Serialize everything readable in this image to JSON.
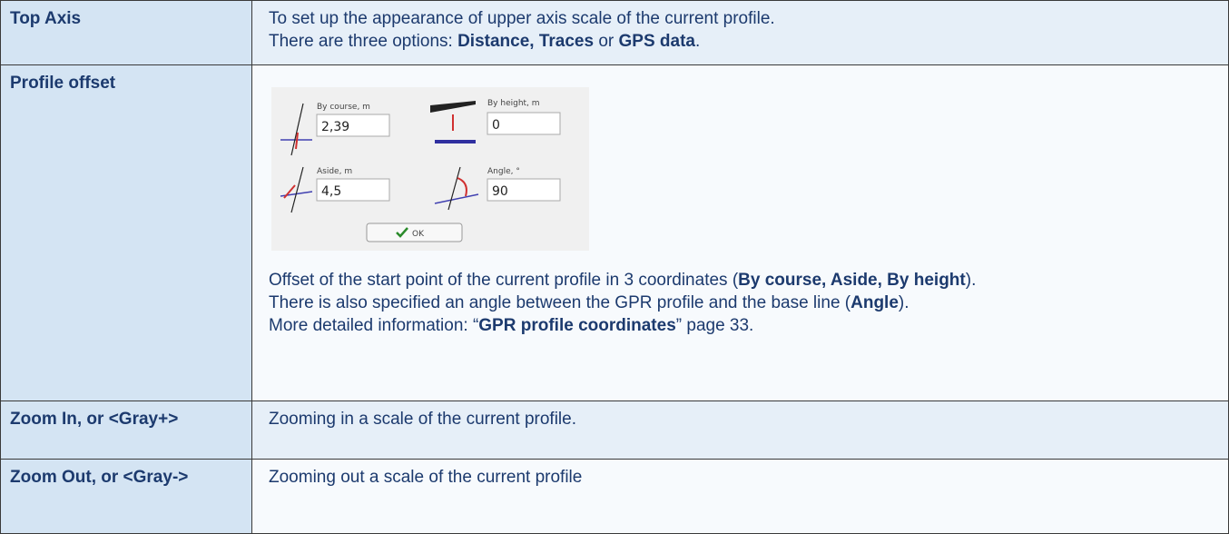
{
  "table": {
    "rows": [
      {
        "label": "Top Axis",
        "content": [
          [
            {
              "text": "To set up the appearance of upper axis scale of the current profile.",
              "bold": false
            }
          ],
          [
            {
              "text": "There are three options: ",
              "bold": false
            },
            {
              "text": "Distance, Traces",
              "bold": true
            },
            {
              "text": " or ",
              "bold": false
            },
            {
              "text": "GPS data",
              "bold": true
            },
            {
              "text": ".",
              "bold": false
            }
          ]
        ]
      },
      {
        "label": "Profile offset",
        "dialog": {
          "by_course_label": "By course, m",
          "by_course_value": "2,39",
          "by_height_label": "By height, m",
          "by_height_value": "0",
          "aside_label": "Aside, m",
          "aside_value": "4,5",
          "angle_label": "Angle, °",
          "angle_value": "90",
          "ok": "OK"
        },
        "content": [
          [
            {
              "text": "Offset of the start point of the current profile in 3 coordinates (",
              "bold": false
            },
            {
              "text": "By course, Aside, By height",
              "bold": true
            },
            {
              "text": ").",
              "bold": false
            }
          ],
          [
            {
              "text": "There is also specified an angle between the GPR profile and the base line (",
              "bold": false
            },
            {
              "text": "Angle",
              "bold": true
            },
            {
              "text": ").",
              "bold": false
            }
          ],
          [
            {
              "text": "More detailed information: “",
              "bold": false
            },
            {
              "text": "GPR profile coordinates",
              "bold": true
            },
            {
              "text": "” page 33.",
              "bold": false
            }
          ]
        ]
      },
      {
        "label": "Zoom In, or <Gray+>",
        "content": [
          [
            {
              "text": "Zooming in a scale of the current profile.",
              "bold": false
            }
          ]
        ]
      },
      {
        "label": "Zoom Out, or <Gray->",
        "content": [
          [
            {
              "text": "Zooming out a scale of the current profile",
              "bold": false
            }
          ]
        ]
      }
    ]
  }
}
